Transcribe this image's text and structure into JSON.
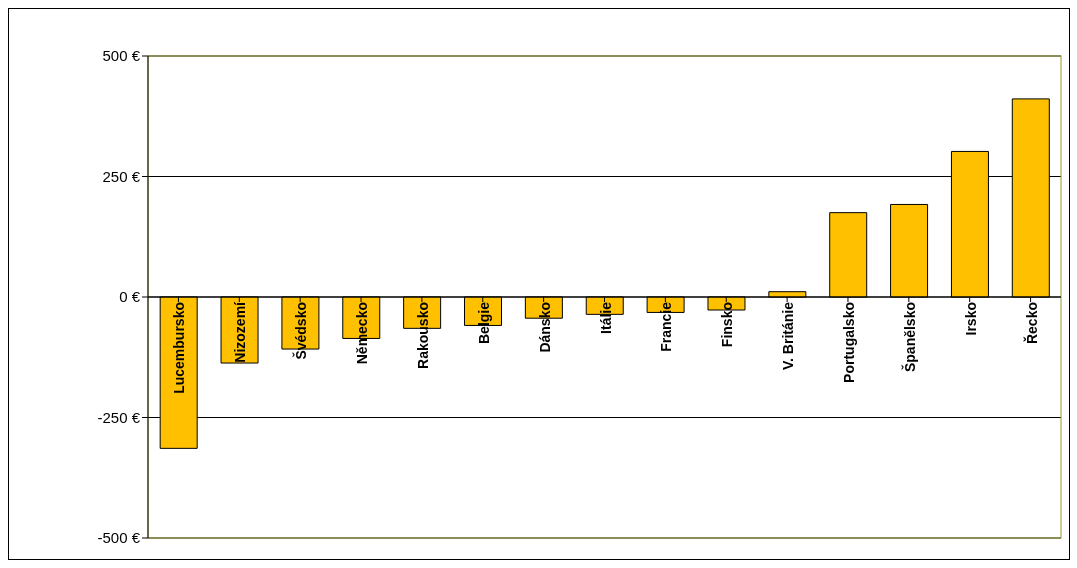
{
  "chart_data": {
    "type": "bar",
    "categories": [
      "Lucembursko",
      "Nizozemí",
      "Švédsko",
      "Německo",
      "Rakousko",
      "Belgie",
      "Dánsko",
      "Itálie",
      "Francie",
      "Finsko",
      "V. Británie",
      "Portugalsko",
      "Španělsko",
      "Irsko",
      "Řecko"
    ],
    "values": [
      -314,
      -137,
      -108,
      -86,
      -65,
      -59,
      -44,
      -36,
      -32,
      -27,
      11,
      175,
      192,
      302,
      411
    ],
    "color": "#ffc000",
    "ylim": [
      -500,
      500
    ],
    "yticks": [
      {
        "value": -500,
        "label": "-500 €"
      },
      {
        "value": -250,
        "label": "-250 €"
      },
      {
        "value": 0,
        "label": "0 €"
      },
      {
        "value": 250,
        "label": "250 €"
      },
      {
        "value": 500,
        "label": "500 €"
      }
    ],
    "grid": "y"
  }
}
